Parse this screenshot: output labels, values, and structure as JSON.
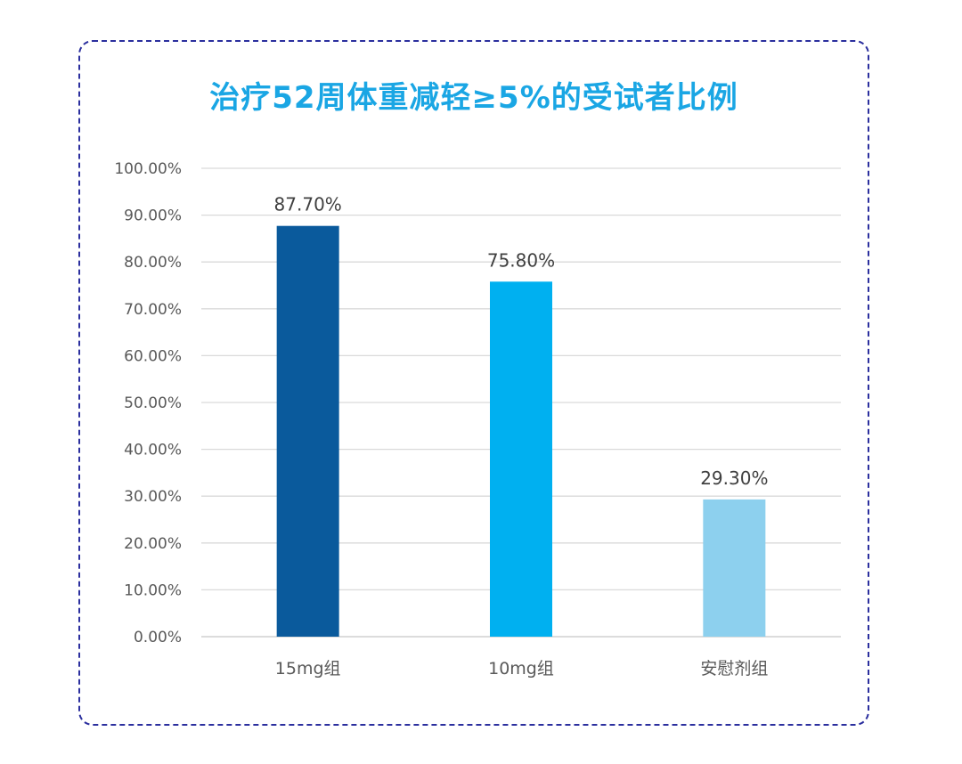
{
  "chart_data": {
    "type": "bar",
    "title": "治疗52周体重减轻≥5%的受试者比例",
    "xlabel": "",
    "ylabel": "",
    "categories": [
      "15mg组",
      "10mg组",
      "安慰剂组"
    ],
    "values": [
      87.7,
      75.8,
      29.3
    ],
    "value_labels": [
      "87.70%",
      "75.80%",
      "29.30%"
    ],
    "bar_colors": [
      "#0a5a9c",
      "#00b0f0",
      "#8dd0ee"
    ],
    "ylim": [
      0,
      100
    ],
    "yticks": [
      0,
      10,
      20,
      30,
      40,
      50,
      60,
      70,
      80,
      90,
      100
    ],
    "ytick_labels": [
      "0.00%",
      "10.00%",
      "20.00%",
      "30.00%",
      "40.00%",
      "50.00%",
      "60.00%",
      "70.00%",
      "80.00%",
      "90.00%",
      "100.00%"
    ],
    "grid": true,
    "legend": "none"
  },
  "colors": {
    "title": "#1aa6e4",
    "frame_border": "#2b2f9e",
    "gridline": "#d9d9d9",
    "text": "#595959"
  }
}
